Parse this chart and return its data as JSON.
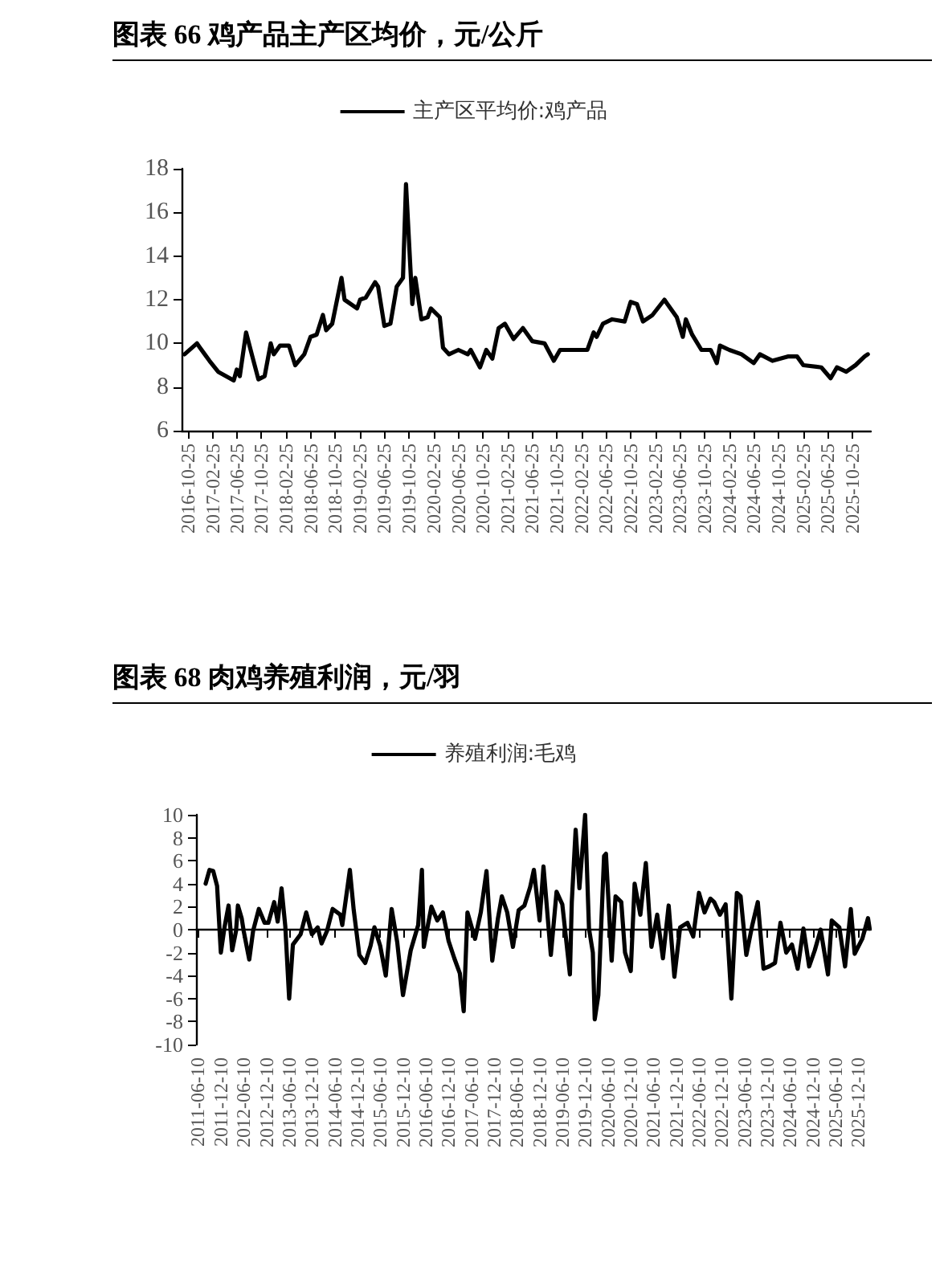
{
  "chart_data": [
    {
      "type": "line",
      "title": "图表 66 鸡产品主产区均价，元/公斤",
      "legend": "top",
      "x": [
        "2016-10-10",
        "2016-12-10",
        "2016-12-25",
        "2017-02-10",
        "2017-03-25",
        "2017-06-10",
        "2017-06-25",
        "2017-07-10",
        "2017-08-10",
        "2017-09-10",
        "2017-10-10",
        "2017-11-10",
        "2017-12-10",
        "2017-12-25",
        "2018-01-25",
        "2018-03-10",
        "2018-04-10",
        "2018-05-25",
        "2018-06-25",
        "2018-07-25",
        "2018-08-25",
        "2018-09-10",
        "2018-10-10",
        "2018-11-25",
        "2018-12-10",
        "2019-02-10",
        "2019-02-25",
        "2019-03-25",
        "2019-05-10",
        "2019-05-25",
        "2019-06-25",
        "2019-07-25",
        "2019-08-25",
        "2019-09-25",
        "2019-10-10",
        "2019-11-10",
        "2019-11-25",
        "2019-12-25",
        "2020-01-25",
        "2020-02-10",
        "2020-03-25",
        "2020-04-10",
        "2020-05-10",
        "2020-06-25",
        "2020-08-10",
        "2020-08-25",
        "2020-10-10",
        "2020-11-10",
        "2020-12-10",
        "2021-01-10",
        "2021-02-10",
        "2021-03-25",
        "2021-05-10",
        "2021-06-25",
        "2021-08-25",
        "2021-10-10",
        "2021-11-10",
        "2022-02-10",
        "2022-03-25",
        "2022-04-25",
        "2022-05-10",
        "2022-06-10",
        "2022-07-25",
        "2022-09-25",
        "2022-10-25",
        "2022-11-25",
        "2022-12-25",
        "2023-02-10",
        "2023-04-10",
        "2023-04-25",
        "2023-06-10",
        "2023-07-10",
        "2023-07-25",
        "2023-08-25",
        "2023-10-10",
        "2023-11-25",
        "2023-12-25",
        "2024-01-10",
        "2024-02-25",
        "2024-04-25",
        "2024-06-25",
        "2024-07-25",
        "2024-09-25",
        "2024-12-10",
        "2025-01-25",
        "2025-02-25",
        "2025-05-25",
        "2025-07-10",
        "2025-08-10",
        "2025-09-25",
        "2025-11-10",
        "2025-12-25",
        "2026-01-10"
      ],
      "series": [
        {
          "name": "主产区平均价:鸡产品",
          "color": "#000000",
          "values": [
            9.5,
            10.0,
            9.8,
            9.2,
            8.7,
            8.3,
            8.8,
            8.5,
            10.5,
            9.4,
            8.35,
            8.5,
            10.0,
            9.5,
            9.9,
            9.9,
            9.0,
            9.5,
            10.3,
            10.4,
            11.3,
            10.6,
            10.9,
            13.0,
            12.0,
            11.6,
            12.0,
            12.1,
            12.8,
            12.6,
            10.8,
            10.9,
            12.6,
            13.0,
            17.3,
            11.8,
            13.0,
            11.1,
            11.2,
            11.6,
            11.2,
            9.8,
            9.5,
            9.7,
            9.5,
            9.7,
            8.9,
            9.7,
            9.3,
            10.7,
            10.9,
            10.2,
            10.7,
            10.1,
            10.0,
            9.2,
            9.7,
            9.7,
            9.7,
            10.5,
            10.3,
            10.9,
            11.1,
            11.0,
            11.9,
            11.8,
            11.0,
            11.3,
            12.0,
            11.8,
            11.2,
            10.3,
            11.1,
            10.4,
            9.7,
            9.7,
            9.1,
            9.9,
            9.7,
            9.5,
            9.1,
            9.5,
            9.2,
            9.4,
            9.4,
            9.0,
            8.9,
            8.4,
            8.9,
            8.7,
            9.0,
            9.4,
            9.5
          ]
        }
      ],
      "xlim": [
        "2016-09-25",
        "2026-01-25"
      ],
      "xticks": [
        "2016-10-25",
        "2017-02-25",
        "2017-06-25",
        "2017-10-25",
        "2018-02-25",
        "2018-06-25",
        "2018-10-25",
        "2019-02-25",
        "2019-06-25",
        "2019-10-25",
        "2020-02-25",
        "2020-06-25",
        "2020-10-25",
        "2021-02-25",
        "2021-06-25",
        "2021-10-25",
        "2022-02-25",
        "2022-06-25",
        "2022-10-25",
        "2023-02-25",
        "2023-06-25",
        "2023-10-25",
        "2024-02-25",
        "2024-06-25",
        "2024-10-25",
        "2025-02-25",
        "2025-06-25",
        "2025-10-25"
      ],
      "ylim": [
        6,
        18
      ],
      "yticks": [
        6,
        8,
        10,
        12,
        14,
        16,
        18
      ]
    },
    {
      "type": "line",
      "title": "图表 68 肉鸡养殖利润，元/羽",
      "legend": "top",
      "x": [
        "2011-08-10",
        "2011-09-10",
        "2011-10-10",
        "2011-11-10",
        "2011-12-10",
        "2012-01-10",
        "2012-02-10",
        "2012-03-10",
        "2012-04-10",
        "2012-04-25",
        "2012-05-25",
        "2012-06-10",
        "2012-07-25",
        "2012-08-25",
        "2012-10-10",
        "2012-11-25",
        "2012-12-25",
        "2013-02-10",
        "2013-03-10",
        "2013-04-10",
        "2013-05-10",
        "2013-06-10",
        "2013-07-10",
        "2013-09-10",
        "2013-10-25",
        "2013-12-10",
        "2014-01-25",
        "2014-02-25",
        "2014-04-10",
        "2014-05-25",
        "2014-07-25",
        "2014-08-10",
        "2014-10-10",
        "2014-11-10",
        "2014-12-25",
        "2015-02-10",
        "2015-03-25",
        "2015-04-25",
        "2015-06-10",
        "2015-07-25",
        "2015-09-10",
        "2015-10-25",
        "2015-12-10",
        "2016-02-10",
        "2016-04-10",
        "2016-05-10",
        "2016-05-25",
        "2016-07-25",
        "2016-09-10",
        "2016-10-25",
        "2016-12-10",
        "2017-01-25",
        "2017-03-10",
        "2017-04-10",
        "2017-05-10",
        "2017-07-10",
        "2017-08-25",
        "2017-10-10",
        "2017-11-25",
        "2018-01-10",
        "2018-02-10",
        "2018-03-25",
        "2018-05-10",
        "2018-06-25",
        "2018-08-10",
        "2018-09-25",
        "2018-10-25",
        "2018-12-10",
        "2019-01-10",
        "2019-03-10",
        "2019-04-25",
        "2019-06-10",
        "2019-08-10",
        "2019-08-25",
        "2019-09-25",
        "2019-10-25",
        "2019-12-10",
        "2020-01-10",
        "2020-02-10",
        "2020-02-25",
        "2020-03-25",
        "2020-05-10",
        "2020-05-25",
        "2020-07-10",
        "2020-08-10",
        "2020-09-25",
        "2020-10-25",
        "2020-12-10",
        "2021-01-10",
        "2021-02-25",
        "2021-04-10",
        "2021-05-25",
        "2021-07-10",
        "2021-08-25",
        "2021-10-10",
        "2021-11-25",
        "2022-01-10",
        "2022-03-10",
        "2022-04-25",
        "2022-06-10",
        "2022-07-25",
        "2022-09-10",
        "2022-10-10",
        "2022-11-25",
        "2023-01-10",
        "2023-02-25",
        "2023-04-10",
        "2023-05-10",
        "2023-06-25",
        "2023-08-10",
        "2023-09-25",
        "2023-11-10",
        "2023-12-25",
        "2024-02-10",
        "2024-03-25",
        "2024-05-10",
        "2024-06-25",
        "2024-08-10",
        "2024-09-25",
        "2024-11-10",
        "2024-12-25",
        "2025-02-10",
        "2025-04-10",
        "2025-05-10",
        "2025-07-10",
        "2025-08-25",
        "2025-10-10",
        "2025-11-10",
        "2026-01-10",
        "2026-02-25",
        "2026-03-10"
      ],
      "series": [
        {
          "name": "养殖利润:毛鸡",
          "color": "#000000",
          "values": [
            4.0,
            5.2,
            5.1,
            3.8,
            -2.0,
            0.3,
            2.1,
            -1.8,
            -0.1,
            2.1,
            1.0,
            -0.1,
            -2.6,
            -0.1,
            1.8,
            0.6,
            0.6,
            2.4,
            0.7,
            3.6,
            0.3,
            -6.0,
            -1.3,
            -0.4,
            1.5,
            -0.4,
            0.2,
            -1.2,
            -0.1,
            1.8,
            1.3,
            0.4,
            5.2,
            1.7,
            -2.2,
            -2.9,
            -1.4,
            0.2,
            -1.4,
            -4.0,
            1.8,
            -1.1,
            -5.7,
            -1.8,
            0.4,
            5.2,
            -1.5,
            2.0,
            0.8,
            1.5,
            -1.0,
            -2.5,
            -3.8,
            -7.1,
            1.5,
            -0.8,
            1.5,
            5.1,
            -2.7,
            1.0,
            2.9,
            1.5,
            -1.5,
            1.7,
            2.1,
            3.7,
            5.2,
            0.8,
            5.5,
            -2.2,
            3.3,
            2.2,
            -3.9,
            2.4,
            8.7,
            3.6,
            10.0,
            0.1,
            -2.0,
            -7.8,
            -5.7,
            6.4,
            6.6,
            -2.7,
            2.9,
            2.4,
            -2.0,
            -3.6,
            4.0,
            1.3,
            5.8,
            -1.5,
            1.3,
            -2.5,
            2.1,
            -4.1,
            0.2,
            0.6,
            -0.6,
            3.2,
            1.5,
            2.7,
            2.4,
            1.3,
            2.2,
            -6.0,
            3.2,
            2.9,
            -2.2,
            0.3,
            2.4,
            -3.4,
            -3.2,
            -2.9,
            0.6,
            -2.0,
            -1.3,
            -3.4,
            0.1,
            -3.2,
            -1.8,
            0.0,
            -3.9,
            0.8,
            0.2,
            -3.2,
            1.8,
            -2.1,
            -0.8,
            1.0,
            0.1
          ]
        }
      ],
      "xlim": [
        "2011-05-25",
        "2026-03-20"
      ],
      "xticks": [
        "2011-06-10",
        "2011-12-10",
        "2012-06-10",
        "2012-12-10",
        "2013-06-10",
        "2013-12-10",
        "2014-06-10",
        "2014-12-10",
        "2015-06-10",
        "2015-12-10",
        "2016-06-10",
        "2016-12-10",
        "2017-06-10",
        "2017-12-10",
        "2018-06-10",
        "2018-12-10",
        "2019-06-10",
        "2019-12-10",
        "2020-06-10",
        "2020-12-10",
        "2021-06-10",
        "2021-12-10",
        "2022-06-10",
        "2022-12-10",
        "2023-06-10",
        "2023-12-10",
        "2024-06-10",
        "2024-12-10",
        "2025-06-10",
        "2025-12-10"
      ],
      "ylim": [
        -10,
        10
      ],
      "yticks": [
        -10,
        -8,
        -6,
        -4,
        -2,
        0,
        2,
        4,
        6,
        8,
        10
      ]
    }
  ]
}
